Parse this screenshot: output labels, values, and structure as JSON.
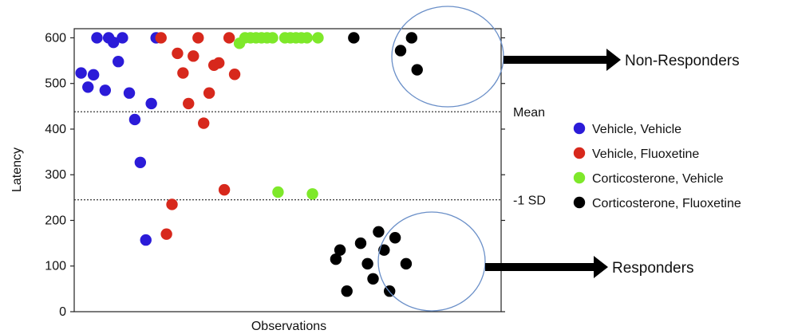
{
  "chart_data": {
    "type": "scatter",
    "xlabel": "Observations",
    "ylabel": "Latency",
    "ylim": [
      0,
      620
    ],
    "yticks": [
      0,
      100,
      200,
      300,
      400,
      500,
      600
    ],
    "x_range": [
      0,
      62
    ],
    "grid": false,
    "legend_position": "right",
    "reference_lines": [
      {
        "label": "Mean",
        "y": 438
      },
      {
        "label": "-1 SD",
        "y": 245
      }
    ],
    "series": [
      {
        "name": "Vehicle, Vehicle",
        "color": "#2b1bd8",
        "points": [
          {
            "x": 1.0,
            "y": 523
          },
          {
            "x": 2.0,
            "y": 492
          },
          {
            "x": 2.8,
            "y": 519
          },
          {
            "x": 3.3,
            "y": 600
          },
          {
            "x": 4.5,
            "y": 485
          },
          {
            "x": 5.0,
            "y": 600
          },
          {
            "x": 5.7,
            "y": 590
          },
          {
            "x": 6.4,
            "y": 548
          },
          {
            "x": 7.0,
            "y": 600
          },
          {
            "x": 8.0,
            "y": 479
          },
          {
            "x": 8.8,
            "y": 421
          },
          {
            "x": 9.6,
            "y": 327
          },
          {
            "x": 10.4,
            "y": 157
          },
          {
            "x": 11.2,
            "y": 456
          },
          {
            "x": 11.9,
            "y": 600
          }
        ]
      },
      {
        "name": "Vehicle, Fluoxetine",
        "color": "#d7281c",
        "points": [
          {
            "x": 12.6,
            "y": 600
          },
          {
            "x": 13.4,
            "y": 170
          },
          {
            "x": 14.2,
            "y": 235
          },
          {
            "x": 15.0,
            "y": 566
          },
          {
            "x": 15.8,
            "y": 523
          },
          {
            "x": 16.6,
            "y": 456
          },
          {
            "x": 17.3,
            "y": 560
          },
          {
            "x": 18.0,
            "y": 600
          },
          {
            "x": 18.8,
            "y": 413
          },
          {
            "x": 19.6,
            "y": 479
          },
          {
            "x": 20.3,
            "y": 540
          },
          {
            "x": 21.0,
            "y": 545
          },
          {
            "x": 21.8,
            "y": 267
          },
          {
            "x": 22.5,
            "y": 600
          },
          {
            "x": 23.3,
            "y": 520
          }
        ]
      },
      {
        "name": "Corticosterone, Vehicle",
        "color": "#7ee82a",
        "points": [
          {
            "x": 24.0,
            "y": 588
          },
          {
            "x": 24.8,
            "y": 600
          },
          {
            "x": 25.6,
            "y": 600
          },
          {
            "x": 26.4,
            "y": 600
          },
          {
            "x": 27.2,
            "y": 600
          },
          {
            "x": 28.0,
            "y": 600
          },
          {
            "x": 28.8,
            "y": 600
          },
          {
            "x": 29.6,
            "y": 262
          },
          {
            "x": 30.6,
            "y": 600
          },
          {
            "x": 31.4,
            "y": 600
          },
          {
            "x": 32.2,
            "y": 600
          },
          {
            "x": 33.0,
            "y": 600
          },
          {
            "x": 33.8,
            "y": 600
          },
          {
            "x": 34.6,
            "y": 258
          },
          {
            "x": 35.4,
            "y": 600
          }
        ]
      },
      {
        "name": "Corticosterone, Fluoxetine",
        "color": "#000000",
        "points": [
          {
            "x": 38.0,
            "y": 115
          },
          {
            "x": 38.6,
            "y": 135
          },
          {
            "x": 39.6,
            "y": 45
          },
          {
            "x": 40.6,
            "y": 600
          },
          {
            "x": 41.6,
            "y": 150
          },
          {
            "x": 42.6,
            "y": 105
          },
          {
            "x": 43.4,
            "y": 72
          },
          {
            "x": 44.2,
            "y": 175
          },
          {
            "x": 45.0,
            "y": 135
          },
          {
            "x": 45.8,
            "y": 45
          },
          {
            "x": 46.6,
            "y": 162
          },
          {
            "x": 47.4,
            "y": 572
          },
          {
            "x": 48.2,
            "y": 105
          },
          {
            "x": 49.0,
            "y": 600
          },
          {
            "x": 49.8,
            "y": 530
          }
        ]
      }
    ],
    "annotations": [
      {
        "label": "Non-Responders"
      },
      {
        "label": "Responders"
      }
    ]
  }
}
